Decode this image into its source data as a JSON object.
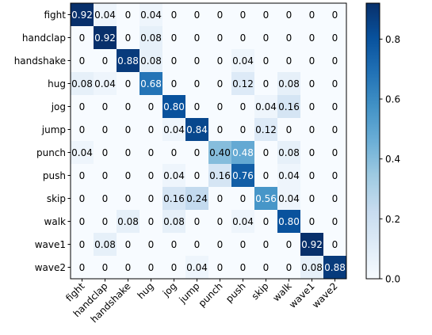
{
  "chart_data": {
    "type": "heatmap",
    "title": "",
    "xlabel": "",
    "ylabel": "",
    "rows": [
      "fight",
      "handclap",
      "handshake",
      "hug",
      "jog",
      "jump",
      "punch",
      "push",
      "skip",
      "walk",
      "wave1",
      "wave2"
    ],
    "cols": [
      "fight",
      "handclap",
      "handshake",
      "hug",
      "jog",
      "jump",
      "punch",
      "push",
      "skip",
      "walk",
      "wave1",
      "wave2"
    ],
    "cell_labels": [
      [
        "0.92",
        "0.04",
        "0",
        "0.04",
        "0",
        "0",
        "0",
        "0",
        "0",
        "0",
        "0",
        "0"
      ],
      [
        "0",
        "0.92",
        "0",
        "0.08",
        "0",
        "0",
        "0",
        "0",
        "0",
        "0",
        "0",
        "0"
      ],
      [
        "0",
        "0",
        "0.88",
        "0.08",
        "0",
        "0",
        "0",
        "0.04",
        "0",
        "0",
        "0",
        "0"
      ],
      [
        "0.08",
        "0.04",
        "0",
        "0.68",
        "0",
        "0",
        "0",
        "0.12",
        "0",
        "0.08",
        "0",
        "0"
      ],
      [
        "0",
        "0",
        "0",
        "0",
        "0.80",
        "0",
        "0",
        "0",
        "0.04",
        "0.16",
        "0",
        "0"
      ],
      [
        "0",
        "0",
        "0",
        "0",
        "0.04",
        "0.84",
        "0",
        "0",
        "0.12",
        "0",
        "0",
        "0"
      ],
      [
        "0.04",
        "0",
        "0",
        "0",
        "0",
        "0",
        "0.40",
        "0.48",
        "0",
        "0.08",
        "0",
        "0"
      ],
      [
        "0",
        "0",
        "0",
        "0",
        "0.04",
        "0",
        "0.16",
        "0.76",
        "0",
        "0.04",
        "0",
        "0"
      ],
      [
        "0",
        "0",
        "0",
        "0",
        "0.16",
        "0.24",
        "0",
        "0",
        "0.56",
        "0.04",
        "0",
        "0"
      ],
      [
        "0",
        "0",
        "0.08",
        "0",
        "0.08",
        "0",
        "0",
        "0.04",
        "0",
        "0.80",
        "0",
        "0"
      ],
      [
        "0",
        "0.08",
        "0",
        "0",
        "0",
        "0",
        "0",
        "0",
        "0",
        "0",
        "0.92",
        "0"
      ],
      [
        "0",
        "0",
        "0",
        "0",
        "0",
        "0.04",
        "0",
        "0",
        "0",
        "0",
        "0.08",
        "0.88"
      ]
    ],
    "colorbar": {
      "min": 0.0,
      "max": 0.92,
      "ticks": [
        0.0,
        0.2,
        0.4,
        0.6,
        0.8
      ],
      "tick_labels": [
        "0.0",
        "0.2",
        "0.4",
        "0.6",
        "0.8"
      ],
      "colormap": "Blues"
    },
    "grid": false,
    "legend": "colorbar-right"
  }
}
